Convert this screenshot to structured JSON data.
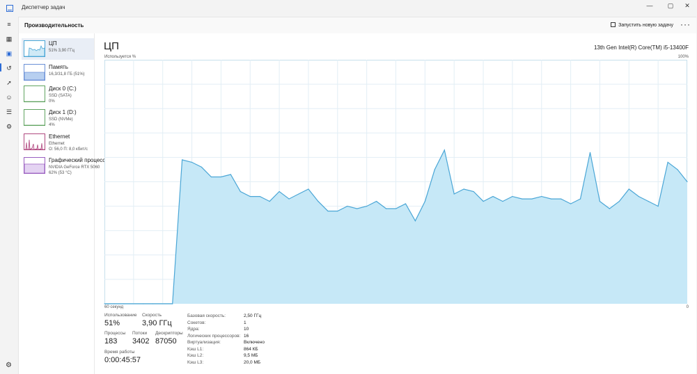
{
  "window": {
    "title": "Диспетчер задач",
    "minimize": "—",
    "maximize": "▢",
    "close": "✕"
  },
  "commandbar": {
    "section_title": "Производительность",
    "run_task_label": "Запустить новую задачу",
    "more_label": "···"
  },
  "sidebar": {
    "icons": [
      "menu-icon",
      "processes-icon",
      "performance-icon",
      "history-icon",
      "startup-icon",
      "users-icon",
      "details-icon",
      "services-icon",
      "settings-icon"
    ]
  },
  "devices": [
    {
      "name": "ЦП",
      "line1": "51% 3,90 ГГц",
      "line2": "",
      "graph_color": "#4aa6d6",
      "fill": "#cfe9f6",
      "selected": true
    },
    {
      "name": "Память",
      "line1": "16,3/31,8 ГБ (51%)",
      "line2": "",
      "graph_color": "#6a8fd6",
      "fill": "#b7cff0",
      "selected": false
    },
    {
      "name": "Диск 0 (C:)",
      "line1": "SSD (SATA)",
      "line2": "0%",
      "graph_color": "#5fa35f",
      "fill": "#ffffff",
      "selected": false
    },
    {
      "name": "Диск 1 (D:)",
      "line1": "SSD (NVMe)",
      "line2": "4%",
      "graph_color": "#5fa35f",
      "fill": "#ffffff",
      "selected": false
    },
    {
      "name": "Ethernet",
      "line1": "Ethernet",
      "line2": "О: 56,0 П: 8,0 кбит/с",
      "graph_color": "#b0487f",
      "fill": "#f3d9e8",
      "selected": false
    },
    {
      "name": "Графический процессор 0",
      "line1": "NVIDIA GeForce RTX 5060",
      "line2": "62% (53 °C)",
      "graph_color": "#9a5fc0",
      "fill": "#e4d3f2",
      "selected": false
    }
  ],
  "main": {
    "title": "ЦП",
    "cpu_model": "13th Gen Intel(R) Core(TM) i5-13400F",
    "axis_top_left": "Используется %",
    "axis_top_right": "100%",
    "axis_bottom_left": "60 секунд",
    "axis_bottom_right": "0"
  },
  "stats": {
    "usage_label": "Использование",
    "usage_value": "51%",
    "speed_label": "Скорость",
    "speed_value": "3,90 ГГц",
    "processes_label": "Процессы",
    "processes_value": "183",
    "threads_label": "Потоки",
    "threads_value": "3402",
    "handles_label": "Дескрипторы",
    "handles_value": "87050",
    "uptime_label": "Время работы",
    "uptime_value": "0:00:45:57"
  },
  "properties": [
    {
      "key": "Базовая скорость:",
      "value": "2,50 ГГц"
    },
    {
      "key": "Сокетов:",
      "value": "1"
    },
    {
      "key": "Ядра:",
      "value": "10"
    },
    {
      "key": "Логических процессоров:",
      "value": "16"
    },
    {
      "key": "Виртуализация:",
      "value": "Включено"
    },
    {
      "key": "Кэш L1:",
      "value": "864 КБ"
    },
    {
      "key": "Кэш L2:",
      "value": "9,5 МБ"
    },
    {
      "key": "Кэш L3:",
      "value": "20,0 МБ"
    }
  ],
  "chart_data": {
    "type": "area",
    "xlabel": "60 секунд",
    "ylabel": "Используется %",
    "xlim": [
      60,
      0
    ],
    "ylim": [
      0,
      100
    ],
    "grid": true,
    "color": "#4aa6d6",
    "fill": "#c6e8f7",
    "x": [
      60,
      59,
      58,
      57,
      56,
      55,
      54,
      53,
      52,
      51,
      50,
      49,
      48,
      47,
      46,
      45,
      44,
      43,
      42,
      41,
      40,
      39,
      38,
      37,
      36,
      35,
      34,
      33,
      32,
      31,
      30,
      29,
      28,
      27,
      26,
      25,
      24,
      23,
      22,
      21,
      20,
      19,
      18,
      17,
      16,
      15,
      14,
      13,
      12,
      11,
      10,
      9,
      8,
      7,
      6,
      5,
      4,
      3,
      2,
      1,
      0
    ],
    "values": [
      0,
      0,
      0,
      0,
      0,
      0,
      0,
      0,
      59,
      58,
      56,
      52,
      52,
      53,
      46,
      44,
      44,
      42,
      46,
      43,
      45,
      47,
      42,
      38,
      38,
      40,
      39,
      40,
      42,
      39,
      39,
      41,
      34,
      42,
      55,
      63,
      45,
      47,
      46,
      42,
      44,
      42,
      44,
      43,
      43,
      44,
      43,
      43,
      41,
      43,
      62,
      42,
      39,
      42,
      47,
      44,
      42,
      40,
      58,
      55,
      50
    ]
  }
}
